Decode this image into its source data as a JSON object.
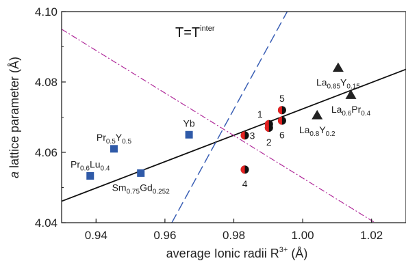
{
  "chart_data": {
    "type": "scatter",
    "title": {
      "main": "T=T",
      "sup": "inter"
    },
    "xlabel": {
      "main": "average Ionic radii R",
      "sup": "3+",
      "tail": " (Å)"
    },
    "ylabel": {
      "italic": "a",
      "rest": " lattice parameter (Å)"
    },
    "xlim": [
      0.93,
      1.03
    ],
    "ylim": [
      4.04,
      4.1
    ],
    "xticks": [
      0.94,
      0.96,
      0.98,
      1.0,
      1.02
    ],
    "xtick_labels": [
      "0.94",
      "0.96",
      "0.98",
      "1.00",
      "1.02"
    ],
    "yticks": [
      4.04,
      4.06,
      4.08,
      4.1
    ],
    "ytick_labels": [
      "4.04",
      "4.06",
      "4.08",
      "4.10"
    ],
    "grid": false,
    "series": [
      {
        "marker": "square",
        "color": "#2f5aa8",
        "points": [
          {
            "x": 0.9383,
            "y": 4.0533,
            "label": [
              {
                "t": "Pr"
              },
              {
                "t": "0.6",
                "sub": true
              },
              {
                "t": "Lu"
              },
              {
                "t": "0.4",
                "sub": true
              }
            ],
            "lpos": "above"
          },
          {
            "x": 0.9452,
            "y": 4.061,
            "label": [
              {
                "t": "Pr"
              },
              {
                "t": "0.5",
                "sub": true
              },
              {
                "t": "Y"
              },
              {
                "t": "0.5",
                "sub": true
              }
            ],
            "lpos": "above"
          },
          {
            "x": 0.953,
            "y": 4.0541,
            "label": [
              {
                "t": "Sm"
              },
              {
                "t": "0.75",
                "sub": true
              },
              {
                "t": "Gd"
              },
              {
                "t": "0.252",
                "sub": true
              }
            ],
            "lpos": "below"
          },
          {
            "x": 0.967,
            "y": 4.065,
            "label": [
              {
                "t": "Yb"
              }
            ],
            "lpos": "above"
          }
        ]
      },
      {
        "marker": "half-circle",
        "color": "#e52222",
        "points": [
          {
            "x": 0.9832,
            "y": 4.0648,
            "label": [
              {
                "t": "3"
              }
            ],
            "lpos": "right"
          },
          {
            "x": 0.9832,
            "y": 4.0551,
            "label": [
              {
                "t": "4"
              }
            ],
            "lpos": "below"
          },
          {
            "x": 0.9902,
            "y": 4.068,
            "label": [
              {
                "t": "1"
              }
            ],
            "lpos": "upleft"
          },
          {
            "x": 0.9902,
            "y": 4.067,
            "label": [
              {
                "t": "2"
              }
            ],
            "lpos": "below"
          },
          {
            "x": 0.994,
            "y": 4.072,
            "label": [
              {
                "t": "5"
              }
            ],
            "lpos": "above"
          },
          {
            "x": 0.994,
            "y": 4.069,
            "label": [
              {
                "t": "6"
              }
            ],
            "lpos": "below"
          }
        ]
      },
      {
        "marker": "triangle",
        "color": "#222222",
        "points": [
          {
            "x": 1.0042,
            "y": 4.0705,
            "label": [
              {
                "t": "La"
              },
              {
                "t": "0.8",
                "sub": true
              },
              {
                "t": "Y"
              },
              {
                "t": "0.2",
                "sub": true
              }
            ],
            "lpos": "below"
          },
          {
            "x": 1.0103,
            "y": 4.084,
            "label": [
              {
                "t": "La"
              },
              {
                "t": "0.85",
                "sub": true
              },
              {
                "t": "Y"
              },
              {
                "t": "0.15",
                "sub": true
              }
            ],
            "lpos": "below"
          },
          {
            "x": 1.014,
            "y": 4.0763,
            "label": [
              {
                "t": "La"
              },
              {
                "t": "0.6",
                "sub": true
              },
              {
                "t": "Pr"
              },
              {
                "t": "0.4",
                "sub": true
              }
            ],
            "lpos": "below"
          }
        ]
      }
    ],
    "lines": [
      {
        "style": "solid",
        "color": "#111111",
        "x": [
          0.93,
          1.03
        ],
        "y": [
          4.0461,
          4.0836
        ]
      },
      {
        "style": "dash",
        "color": "#3a5fb5",
        "x": [
          0.962,
          0.9955
        ],
        "y": [
          4.04,
          4.1
        ]
      },
      {
        "style": "dashdot",
        "color": "#b02a9a",
        "x": [
          0.93,
          1.021
        ],
        "y": [
          4.095,
          4.04
        ]
      }
    ]
  }
}
